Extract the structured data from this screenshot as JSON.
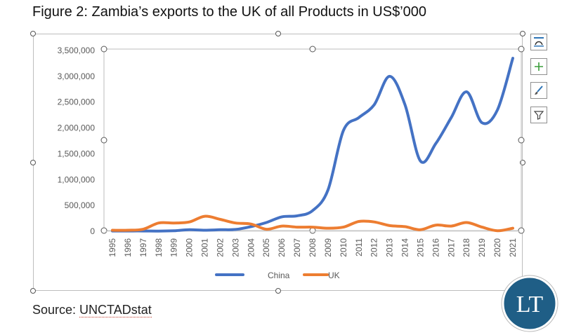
{
  "figure_title": "Figure 2: Zambia’s exports to the UK of all Products in US$’000",
  "source": {
    "prefix": "Source: ",
    "link_text": "UNCTADstat"
  },
  "logo": {
    "text": "LT",
    "color": "#1f5e86"
  },
  "toolbar": {
    "layout_icon": "chart-layout-icon",
    "add_icon": "plus-icon",
    "style_icon": "brush-icon",
    "filter_icon": "funnel-icon"
  },
  "colors": {
    "china": "#4472c4",
    "uk": "#ed7d31",
    "tick_text": "#595959",
    "axis": "#d9d9d9"
  },
  "chart_data": {
    "type": "line",
    "title": "",
    "xlabel": "",
    "ylabel": "",
    "ylim": [
      0,
      3500000
    ],
    "yticks": [
      0,
      500000,
      1000000,
      1500000,
      2000000,
      2500000,
      3000000,
      3500000
    ],
    "ytick_labels": [
      "0",
      "500,000",
      "1,000,000",
      "1,500,000",
      "2,000,000",
      "2,500,000",
      "3,000,000",
      "3,500,000"
    ],
    "grid": false,
    "legend_position": "bottom",
    "categories": [
      "1995",
      "1996",
      "1997",
      "1998",
      "1999",
      "2000",
      "2001",
      "2002",
      "2003",
      "2004",
      "2005",
      "2006",
      "2007",
      "2008",
      "2009",
      "2010",
      "2011",
      "2012",
      "2013",
      "2014",
      "2015",
      "2016",
      "2017",
      "2018",
      "2019",
      "2020",
      "2021"
    ],
    "series": [
      {
        "name": "China",
        "color": "#4472c4",
        "values": [
          5000,
          5000,
          6000,
          4000,
          10000,
          30000,
          20000,
          30000,
          35000,
          90000,
          170000,
          280000,
          300000,
          400000,
          800000,
          1950000,
          2200000,
          2450000,
          3000000,
          2450000,
          1360000,
          1700000,
          2200000,
          2700000,
          2100000,
          2350000,
          3350000
        ]
      },
      {
        "name": "UK",
        "color": "#ed7d31",
        "values": [
          20000,
          20000,
          40000,
          160000,
          160000,
          180000,
          290000,
          230000,
          160000,
          140000,
          40000,
          100000,
          80000,
          80000,
          60000,
          80000,
          190000,
          180000,
          110000,
          90000,
          30000,
          120000,
          100000,
          170000,
          80000,
          10000,
          60000
        ]
      }
    ]
  }
}
